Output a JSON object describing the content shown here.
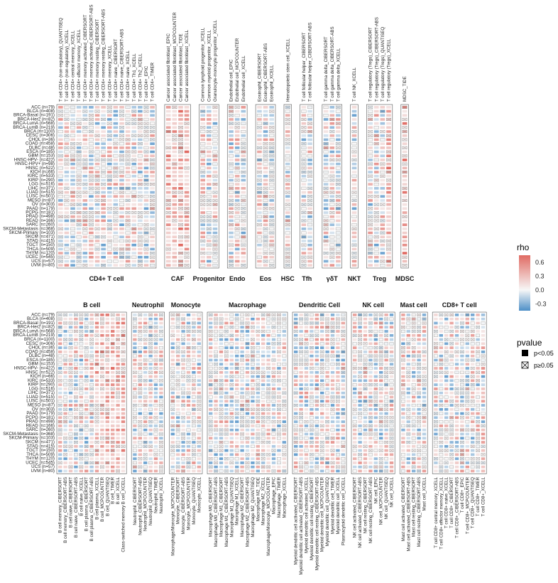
{
  "chart_data": {
    "type": "heatmap",
    "description_free": true,
    "cancers": [
      "ACC (n=79)",
      "BLCA (n=408)",
      "BRCA-Basal (n=191)",
      "BRCA-Her2 (n=82)",
      "BRCA-LumA (n=568)",
      "BRCA-LumB (n=219)",
      "BRCA (n=1100)",
      "CESC (n=306)",
      "CHOL (n=36)",
      "COAD (n=458)",
      "DLBC (n=48)",
      "ESCA (n=185)",
      "GBM (n=153)",
      "HNSC-HPV- (n=422)",
      "HNSC-HPV+ (n=98)",
      "HNSC (n=522)",
      "KICH (n=66)",
      "KIRC (n=533)",
      "KIRP (n=290)",
      "LGG (n=516)",
      "LIHC (n=371)",
      "LUAD (n=515)",
      "LUSC (n=501)",
      "MESO (n=87)",
      "OV (n=303)",
      "PAAD (n=179)",
      "PCPG (n=181)",
      "PRAD (n=498)",
      "READ (n=166)",
      "SARC (n=260)",
      "SKCM-Metastasis (n=368)",
      "SKCM-Primary (n=103)",
      "SKCM (n=471)",
      "STAD (n=415)",
      "TGCT (n=150)",
      "THCA (n=509)",
      "THYM (n=120)",
      "UCEC (n=545)",
      "UCS (n=57)",
      "UVM (n=80)"
    ],
    "cancers_bottom": [
      "ACC (n=79)",
      "BLCA (n=408)",
      "BRCA-Basal (n=191)",
      "BRCA-Her2 (n=82)",
      "BRCA-LumA (n=568)",
      "BRCA-LumB (n=219)",
      "BRCA (n=1100)",
      "CESC (n=306)",
      "CHOL (n=36)",
      "COAD (n=458)",
      "DLBC (n=48)",
      "ESCA (n=185)",
      "GBM (n=153)",
      "HNSC-HPV- (n=422)",
      "HNSC (n=522)",
      "KICH (n=66)",
      "KIRC (n=533)",
      "KIRP (n=290)",
      "LGG (n=516)",
      "LIHC (n=371)",
      "LUAD (n=515)",
      "LUSC (n=501)",
      "MESO (n=87)",
      "OV (n=303)",
      "PAAD (n=179)",
      "PCPG (n=181)",
      "PRAD (n=498)",
      "READ (n=166)",
      "SARC (n=260)",
      "SKCM-Metastasis (n=368)",
      "SKCM-Primary (n=103)",
      "SKCM (n=471)",
      "STAD (n=415)",
      "TGCT (n=150)",
      "THCA (n=509)",
      "THYM (n=120)",
      "UCEC (n=545)",
      "UCS (n=57)",
      "UVM (n=80)"
    ],
    "top_groups": [
      {
        "name": "CD4+ T cell",
        "cells": [
          "T cell CD4+ (non-regulatory)_QUANTISEQ",
          "T cell CD4+ (non-regulatory)_XCELL",
          "T cell CD4+ central memory_XCELL",
          "T cell CD4+ effector memory_XCELL",
          "T cell CD4+ memory activated_CIBERSORT",
          "T cell CD4+ memory activated_CIBERSORT-ABS",
          "T cell CD4+ memory resting_CIBERSORT",
          "T cell CD4+ memory resting_CIBERSORT-ABS",
          "T cell CD4+ memory_XCELL",
          "T cell CD4+ naive_CIBERSORT",
          "T cell CD4+ naive_CIBERSORT-ABS",
          "T cell CD4+ naive_XCELL",
          "T cell CD4+ Th1_XCELL",
          "T cell CD4+ Th2_XCELL",
          "T cell CD4+_EPIC",
          "T cell CD4+_TIMER"
        ]
      },
      {
        "name": "CAF",
        "cells": [
          "Cancer associated fibroblast_EPIC",
          "Cancer associated fibroblast_MCPCOUNTER",
          "Cancer associated fibroblast_TIDE",
          "Cancer associated fibroblast_XCELL"
        ]
      },
      {
        "name": "Progenitor",
        "cells": [
          "Common lymphoid progenitor_XCELL",
          "Common myeloid progenitor_XCELL",
          "Granulocyte-monocyte progenitor_XCELL"
        ]
      },
      {
        "name": "Endo",
        "cells": [
          "Endothelial cell_EPIC",
          "Endothelial cell_MCPCOUNTER",
          "Endothelial cell_XCELL"
        ]
      },
      {
        "name": "Eos",
        "cells": [
          "Eosinophil_CIBERSORT",
          "Eosinophil_CIBERSORT-ABS",
          "Eosinophil_XCELL"
        ]
      },
      {
        "name": "HSC",
        "cells": [
          "Hematopoietic stem cell_XCELL"
        ]
      },
      {
        "name": "Tfh",
        "cells": [
          "T cell follicular helper_CIBERSORT",
          "T cell follicular helper_CIBERSORT-ABS"
        ]
      },
      {
        "name": "γδT",
        "cells": [
          "T cell gamma delta_CIBERSORT",
          "T cell gamma delta_CIBERSORT-ABS",
          "T cell gamma delta_XCELL"
        ]
      },
      {
        "name": "NKT",
        "cells": [
          "T cell NK_XCELL"
        ]
      },
      {
        "name": "Treg",
        "cells": [
          "T cell regulatory (Tregs)_CIBERSORT",
          "T cell regulatory (Tregs)_CIBERSORT-ABS",
          "T cell regulatory (Tregs)_QUANTISEQ",
          "T cell regulatory (Tregs)_XCELL"
        ]
      },
      {
        "name": "MDSC",
        "cells": [
          "MDSC_TIDE"
        ]
      }
    ],
    "bottom_groups": [
      {
        "name": "B cell",
        "cells": [
          "B cell memory_CIBERSORT",
          "B cell memory_CIBERSORT-ABS",
          "B cell naive_CIBERSORT",
          "B cell naive_CIBERSORT-ABS",
          "B cell naive_XCELL",
          "B cell plasma_CIBERSORT",
          "B cell plasma_CIBERSORT-ABS",
          "B cell plasma_XCELL",
          "B cell_MCPCOUNTER",
          "B cell_QUANTISEQ",
          "B cell_TIMER",
          "B cell_XCELL",
          "Class-switched memory B cell_XCELL"
        ]
      },
      {
        "name": "Neutrophil",
        "cells": [
          "Neutrophil_CIBERSORT",
          "Neutrophil_CIBERSORT-ABS",
          "Neutrophil_MCPCOUNTER",
          "Neutrophil_QUANTISEQ",
          "Neutrophil_TIMER",
          "Neutrophil_XCELL"
        ]
      },
      {
        "name": "Monocyte",
        "cells": [
          "Macrophage/Monocyte_MCPCOUNTER",
          "Monocyte_CIBERSORT",
          "Monocyte_CIBERSORT-ABS",
          "Monocyte_MCPCOUNTER",
          "Monocyte_QUANTISEQ",
          "Monocyte_XCELL"
        ]
      },
      {
        "name": "Macrophage",
        "cells": [
          "Macrophage M0_CIBERSORT",
          "Macrophage M0_CIBERSORT-ABS",
          "Macrophage M1_CIBERSORT",
          "Macrophage M1_CIBERSORT-ABS",
          "Macrophage M1_QUANTISEQ",
          "Macrophage M1_XCELL",
          "Macrophage M2_CIBERSORT",
          "Macrophage M2_CIBERSORT-ABS",
          "Macrophage M2_QUANTISEQ",
          "Macrophage M2_TIDE",
          "Macrophage M2_XCELL",
          "Macrophage/Monocyte_MCPCOUNTER",
          "Macrophage_EPIC",
          "Macrophage_TIMER",
          "Macrophage_XCELL"
        ]
      },
      {
        "name": "Dendritic Cell",
        "cells": [
          "Myeloid dendritic cell activated_CIBERSORT",
          "Myeloid dendritic cell activated_CIBERSORT-ABS",
          "Myeloid dendritic cell activated_XCELL",
          "Myeloid dendritic cell resting_CIBERSORT",
          "Myeloid dendritic cell resting_CIBERSORT-ABS",
          "Myeloid dendritic cell_MCPCOUNTER",
          "Myeloid dendritic cell_QUANTISEQ",
          "Myeloid dendritic cell_TIMER",
          "Myeloid dendritic cell_XCELL",
          "Plasmacytoid dendritic cell_XCELL"
        ]
      },
      {
        "name": "NK cell",
        "cells": [
          "NK cell activated_CIBERSORT",
          "NK cell activated_CIBERSORT-ABS",
          "NK cell resting_CIBERSORT",
          "NK cell resting_CIBERSORT-ABS",
          "NK cell_EPIC",
          "NK cell_MCPCOUNTER",
          "NK cell_QUANTISEQ",
          "NK cell_XCELL"
        ]
      },
      {
        "name": "Mast cell",
        "cells": [
          "Mast cell activated_CIBERSORT",
          "Mast cell activated_CIBERSORT-ABS",
          "Mast cell resting_CIBERSORT",
          "Mast cell resting_CIBERSORT-ABS",
          "Mast cell_XCELL"
        ]
      },
      {
        "name": "CD8+ T cell",
        "cells": [
          "T cell CD8+ central memory_XCELL",
          "T cell CD8+ effector memory_XCELL",
          "T cell CD8+ naive_XCELL",
          "T cell CD8+_CIBERSORT",
          "T cell CD8+_CIBERSORT-ABS",
          "T cell CD8+_EPIC",
          "T cell CD8+_MCPCOUNTER",
          "T cell CD8+_QUANTISEQ",
          "T cell CD8+_TIMER",
          "T cell CD8+_XCELL"
        ]
      }
    ],
    "color_scale": {
      "low": "#4d8fc7",
      "mid": "#f7f7f7",
      "high": "#e06b63",
      "domain": [
        -0.45,
        0,
        0.75
      ]
    },
    "legend": {
      "rho_title": "rho",
      "rho_ticks": [
        "0.6",
        "0.3",
        "0.0",
        "-0.3"
      ],
      "rho_tick_values": [
        0.6,
        0.3,
        0.0,
        -0.3
      ],
      "pvalue_title": "pvalue",
      "pvalue_items": [
        "p<0.05",
        "p≥0.05"
      ],
      "placement": "right"
    }
  }
}
